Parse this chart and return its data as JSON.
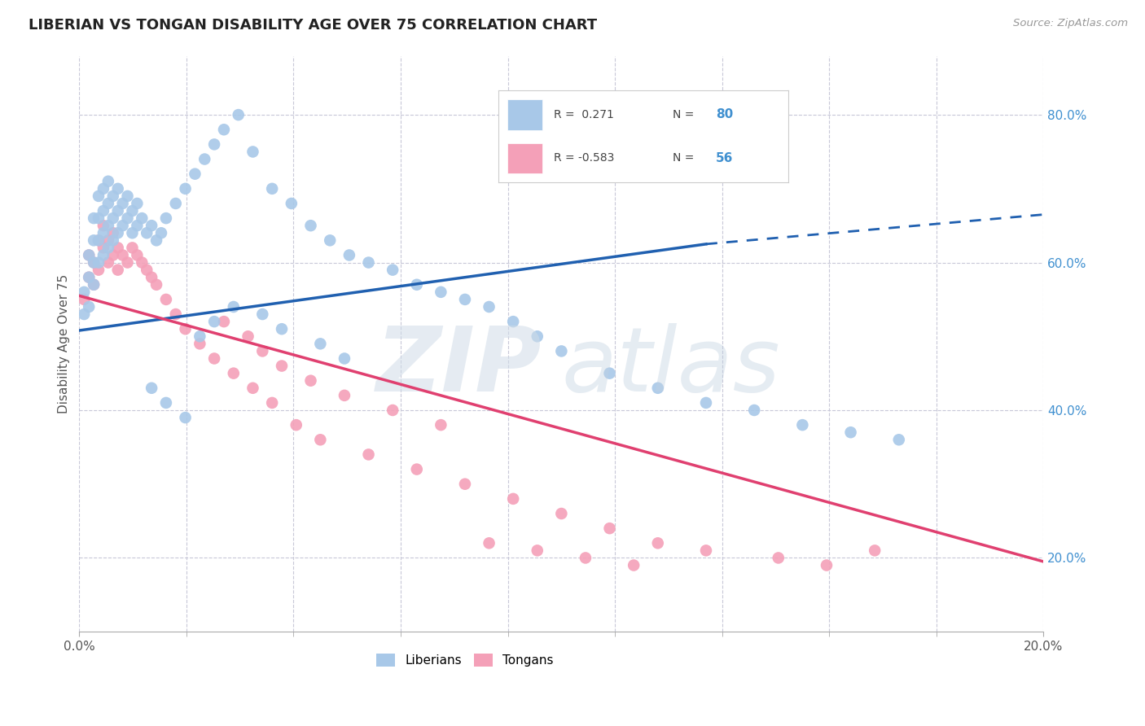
{
  "title": "LIBERIAN VS TONGAN DISABILITY AGE OVER 75 CORRELATION CHART",
  "source": "Source: ZipAtlas.com",
  "ylabel": "Disability Age Over 75",
  "watermark_zip": "ZIP",
  "watermark_atlas": "atlas",
  "liberian_R": 0.271,
  "liberian_N": 80,
  "tongan_R": -0.583,
  "tongan_N": 56,
  "liberian_color": "#a8c8e8",
  "tongan_color": "#f4a0b8",
  "liberian_line_color": "#2060b0",
  "tongan_line_color": "#e04070",
  "right_axis_color": "#4090d0",
  "background_color": "#ffffff",
  "grid_color": "#c8c8d8",
  "xlim": [
    0.0,
    0.2
  ],
  "ylim": [
    0.1,
    0.88
  ],
  "liberian_scatter_x": [
    0.001,
    0.001,
    0.002,
    0.002,
    0.002,
    0.003,
    0.003,
    0.003,
    0.003,
    0.004,
    0.004,
    0.004,
    0.004,
    0.005,
    0.005,
    0.005,
    0.005,
    0.006,
    0.006,
    0.006,
    0.006,
    0.007,
    0.007,
    0.007,
    0.008,
    0.008,
    0.008,
    0.009,
    0.009,
    0.01,
    0.01,
    0.011,
    0.011,
    0.012,
    0.012,
    0.013,
    0.014,
    0.015,
    0.016,
    0.017,
    0.018,
    0.02,
    0.022,
    0.024,
    0.026,
    0.028,
    0.03,
    0.033,
    0.036,
    0.04,
    0.044,
    0.048,
    0.052,
    0.056,
    0.06,
    0.065,
    0.07,
    0.075,
    0.08,
    0.085,
    0.09,
    0.095,
    0.1,
    0.11,
    0.12,
    0.13,
    0.14,
    0.15,
    0.16,
    0.17,
    0.025,
    0.028,
    0.032,
    0.038,
    0.042,
    0.05,
    0.055,
    0.015,
    0.018,
    0.022
  ],
  "liberian_scatter_y": [
    0.53,
    0.56,
    0.54,
    0.58,
    0.61,
    0.57,
    0.6,
    0.63,
    0.66,
    0.6,
    0.63,
    0.66,
    0.69,
    0.61,
    0.64,
    0.67,
    0.7,
    0.62,
    0.65,
    0.68,
    0.71,
    0.63,
    0.66,
    0.69,
    0.64,
    0.67,
    0.7,
    0.65,
    0.68,
    0.66,
    0.69,
    0.64,
    0.67,
    0.65,
    0.68,
    0.66,
    0.64,
    0.65,
    0.63,
    0.64,
    0.66,
    0.68,
    0.7,
    0.72,
    0.74,
    0.76,
    0.78,
    0.8,
    0.75,
    0.7,
    0.68,
    0.65,
    0.63,
    0.61,
    0.6,
    0.59,
    0.57,
    0.56,
    0.55,
    0.54,
    0.52,
    0.5,
    0.48,
    0.45,
    0.43,
    0.41,
    0.4,
    0.38,
    0.37,
    0.36,
    0.5,
    0.52,
    0.54,
    0.53,
    0.51,
    0.49,
    0.47,
    0.43,
    0.41,
    0.39
  ],
  "tongan_scatter_x": [
    0.001,
    0.002,
    0.002,
    0.003,
    0.003,
    0.004,
    0.004,
    0.005,
    0.005,
    0.006,
    0.006,
    0.007,
    0.007,
    0.008,
    0.008,
    0.009,
    0.01,
    0.011,
    0.012,
    0.013,
    0.014,
    0.015,
    0.016,
    0.018,
    0.02,
    0.022,
    0.025,
    0.028,
    0.032,
    0.036,
    0.04,
    0.045,
    0.05,
    0.06,
    0.07,
    0.08,
    0.09,
    0.1,
    0.11,
    0.12,
    0.03,
    0.035,
    0.038,
    0.042,
    0.048,
    0.055,
    0.065,
    0.075,
    0.085,
    0.095,
    0.105,
    0.115,
    0.13,
    0.145,
    0.155,
    0.165
  ],
  "tongan_scatter_y": [
    0.55,
    0.58,
    0.61,
    0.57,
    0.6,
    0.63,
    0.59,
    0.62,
    0.65,
    0.6,
    0.63,
    0.61,
    0.64,
    0.62,
    0.59,
    0.61,
    0.6,
    0.62,
    0.61,
    0.6,
    0.59,
    0.58,
    0.57,
    0.55,
    0.53,
    0.51,
    0.49,
    0.47,
    0.45,
    0.43,
    0.41,
    0.38,
    0.36,
    0.34,
    0.32,
    0.3,
    0.28,
    0.26,
    0.24,
    0.22,
    0.52,
    0.5,
    0.48,
    0.46,
    0.44,
    0.42,
    0.4,
    0.38,
    0.22,
    0.21,
    0.2,
    0.19,
    0.21,
    0.2,
    0.19,
    0.21
  ],
  "liberian_line_x0": 0.0,
  "liberian_line_x1": 0.13,
  "liberian_line_x2": 0.2,
  "liberian_line_y0": 0.508,
  "liberian_line_y1": 0.625,
  "liberian_line_y2": 0.665,
  "tongan_line_x0": 0.0,
  "tongan_line_x1": 0.2,
  "tongan_line_y0": 0.555,
  "tongan_line_y1": 0.195
}
